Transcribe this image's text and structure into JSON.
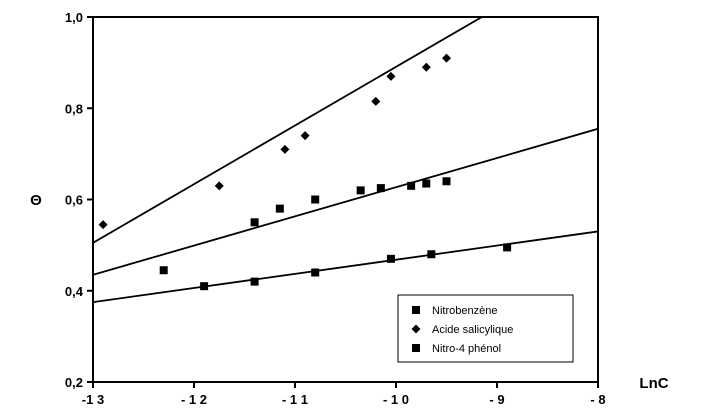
{
  "chart_data": {
    "type": "scatter",
    "xlabel": "LnC",
    "ylabel": "Θ",
    "xlim": [
      -13,
      -8
    ],
    "ylim": [
      0.2,
      1.0
    ],
    "x_ticks": [
      -13,
      -12,
      -11,
      -10,
      -9,
      -8
    ],
    "x_tick_labels": [
      "-1 3",
      "- 1 2",
      "- 1 1",
      "- 1 0",
      "- 9",
      "- 8"
    ],
    "y_ticks": [
      0.2,
      0.4,
      0.6,
      0.8,
      1.0
    ],
    "y_tick_labels": [
      "0,2",
      "0,4",
      "0,6",
      "0,8",
      "1,0"
    ],
    "grid": false,
    "legend_position": "bottom-right",
    "series": [
      {
        "name": "Nitrobenzène",
        "marker": "square",
        "color": "#000000",
        "points": [
          [
            -12.3,
            0.445
          ],
          [
            -11.9,
            0.41
          ],
          [
            -11.4,
            0.42
          ],
          [
            -10.8,
            0.44
          ],
          [
            -10.05,
            0.47
          ],
          [
            -9.65,
            0.48
          ],
          [
            -8.9,
            0.495
          ]
        ],
        "fit_line": [
          [
            -13,
            0.375
          ],
          [
            -8,
            0.53
          ]
        ]
      },
      {
        "name": "Acide salicylique",
        "marker": "diamond",
        "color": "#000000",
        "points": [
          [
            -12.9,
            0.545
          ],
          [
            -11.75,
            0.63
          ],
          [
            -11.1,
            0.71
          ],
          [
            -10.9,
            0.74
          ],
          [
            -10.2,
            0.815
          ],
          [
            -10.05,
            0.87
          ],
          [
            -9.7,
            0.89
          ],
          [
            -9.5,
            0.91
          ]
        ],
        "fit_line": [
          [
            -13,
            0.505
          ],
          [
            -9.15,
            1.0
          ]
        ]
      },
      {
        "name": "Nitro-4 phénol",
        "marker": "square",
        "color": "#000000",
        "points": [
          [
            -11.4,
            0.55
          ],
          [
            -11.15,
            0.58
          ],
          [
            -10.8,
            0.6
          ],
          [
            -10.35,
            0.62
          ],
          [
            -10.15,
            0.625
          ],
          [
            -9.85,
            0.63
          ],
          [
            -9.7,
            0.635
          ],
          [
            -9.5,
            0.64
          ]
        ],
        "fit_line": [
          [
            -13,
            0.435
          ],
          [
            -8,
            0.755
          ]
        ]
      }
    ]
  }
}
